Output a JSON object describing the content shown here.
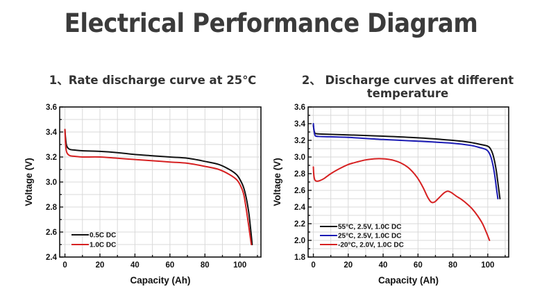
{
  "page": {
    "title": "Electrical Performance Diagram"
  },
  "chart_data": [
    {
      "type": "line",
      "title": "1、Rate discharge curve at 25℃",
      "xlabel": "Capacity (Ah)",
      "ylabel": "Voltage (V)",
      "xlim": [
        -3,
        112
      ],
      "ylim": [
        2.4,
        3.6
      ],
      "xticks": [
        0,
        20,
        40,
        60,
        80,
        100
      ],
      "xtick_labels": [
        "0",
        "20",
        "40",
        "60",
        "80",
        "100"
      ],
      "yticks": [
        2.4,
        2.6,
        2.8,
        3.0,
        3.2,
        3.4,
        3.6
      ],
      "ytick_labels": [
        "2.4",
        "2.6",
        "2.8",
        "3.0",
        "3.2",
        "3.4",
        "3.6"
      ],
      "grid": true,
      "legend_position": "bottom-left",
      "series": [
        {
          "name": "0.5C DC",
          "color": "#111111",
          "x": [
            0,
            0.3,
            0.8,
            1.5,
            3,
            6,
            10,
            20,
            30,
            40,
            50,
            60,
            70,
            80,
            88,
            94,
            98,
            100,
            102,
            103.5,
            105,
            106,
            107
          ],
          "y": [
            3.42,
            3.36,
            3.3,
            3.275,
            3.26,
            3.255,
            3.25,
            3.245,
            3.235,
            3.22,
            3.21,
            3.2,
            3.19,
            3.165,
            3.14,
            3.1,
            3.06,
            3.02,
            2.96,
            2.88,
            2.76,
            2.64,
            2.5
          ]
        },
        {
          "name": "1.0C DC",
          "color": "#d62021",
          "x": [
            0,
            0.3,
            0.8,
            1.5,
            3,
            6,
            10,
            20,
            30,
            40,
            50,
            60,
            70,
            80,
            88,
            94,
            98,
            100,
            102,
            103.2,
            104.5,
            105.5,
            106.5
          ],
          "y": [
            3.42,
            3.32,
            3.25,
            3.225,
            3.21,
            3.205,
            3.2,
            3.2,
            3.19,
            3.18,
            3.17,
            3.16,
            3.15,
            3.125,
            3.1,
            3.06,
            3.02,
            2.98,
            2.91,
            2.82,
            2.7,
            2.6,
            2.5
          ]
        }
      ]
    },
    {
      "type": "line",
      "title": "2、 Discharge curves at different temperature",
      "title_lines": [
        "2、 Discharge curves at different",
        "temperature"
      ],
      "xlabel": "Capacity (Ah)",
      "ylabel": "Voltage (V)",
      "xlim": [
        -3,
        112
      ],
      "ylim": [
        1.8,
        3.6
      ],
      "xticks": [
        0,
        20,
        40,
        60,
        80,
        100
      ],
      "xtick_labels": [
        "0",
        "20",
        "40",
        "60",
        "80",
        "100"
      ],
      "yticks": [
        1.8,
        2.0,
        2.2,
        2.4,
        2.6,
        2.8,
        3.0,
        3.2,
        3.4,
        3.6
      ],
      "ytick_labels": [
        "1.8",
        "2.0",
        "2.2",
        "2.4",
        "2.6",
        "2.8",
        "3.0",
        "3.2",
        "3.4",
        "3.6"
      ],
      "grid": true,
      "legend_position": "bottom-left",
      "series": [
        {
          "name": "55°C, 2.5V, 1.0C DC",
          "color": "#111111",
          "x": [
            0,
            0.3,
            0.8,
            1.5,
            5,
            20,
            40,
            60,
            80,
            90,
            96,
            100,
            101.5,
            102.8,
            104,
            105,
            106,
            107
          ],
          "y": [
            3.38,
            3.33,
            3.29,
            3.28,
            3.275,
            3.265,
            3.25,
            3.23,
            3.2,
            3.175,
            3.15,
            3.13,
            3.1,
            3.04,
            2.94,
            2.82,
            2.66,
            2.5
          ]
        },
        {
          "name": "25°C, 2.5V, 1.0C DC",
          "color": "#1a1ab4",
          "x": [
            0,
            0.3,
            0.8,
            1.5,
            5,
            20,
            40,
            60,
            80,
            90,
            96,
            99,
            100.5,
            101.8,
            103,
            104,
            105,
            105.8
          ],
          "y": [
            3.4,
            3.33,
            3.27,
            3.25,
            3.245,
            3.235,
            3.21,
            3.19,
            3.165,
            3.14,
            3.11,
            3.09,
            3.06,
            3.0,
            2.9,
            2.78,
            2.62,
            2.5
          ]
        },
        {
          "name": "-20°C, 2.0V, 1.0C DC",
          "color": "#d62021",
          "x": [
            0,
            0.2,
            0.5,
            1,
            2,
            3.5,
            6,
            10,
            15,
            20,
            25,
            30,
            35,
            38,
            42,
            46,
            50,
            54,
            57,
            60,
            63,
            65.5,
            67.5,
            69.5,
            72,
            75,
            77,
            79,
            82,
            85,
            88,
            91,
            94,
            97,
            99.5,
            101
          ],
          "y": [
            2.88,
            2.8,
            2.75,
            2.72,
            2.71,
            2.715,
            2.74,
            2.8,
            2.86,
            2.91,
            2.94,
            2.965,
            2.978,
            2.98,
            2.975,
            2.96,
            2.93,
            2.88,
            2.82,
            2.74,
            2.63,
            2.52,
            2.46,
            2.46,
            2.51,
            2.57,
            2.59,
            2.575,
            2.53,
            2.49,
            2.44,
            2.38,
            2.3,
            2.2,
            2.08,
            2.0
          ]
        }
      ]
    }
  ]
}
